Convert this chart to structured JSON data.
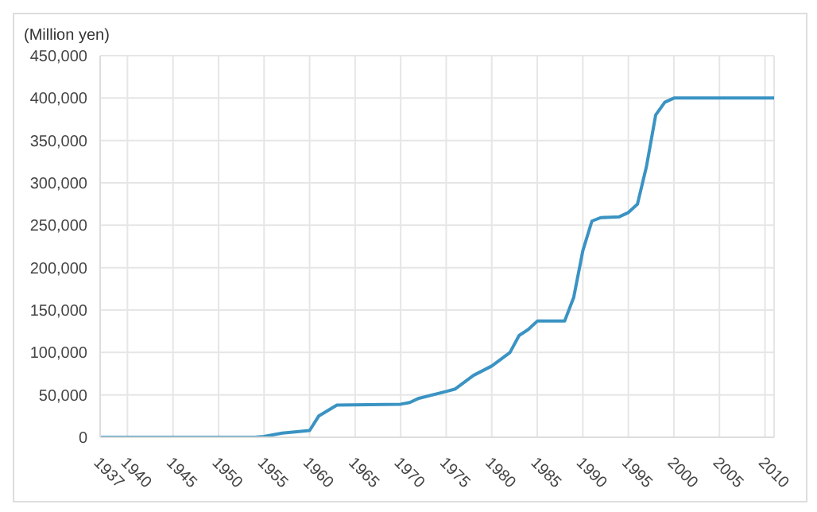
{
  "chart_data": {
    "type": "line",
    "ylabel": "(Million yen)",
    "x": [
      1937,
      1954,
      1955,
      1957,
      1960,
      1961,
      1963,
      1970,
      1971,
      1972,
      1975,
      1976,
      1978,
      1980,
      1982,
      1983,
      1984,
      1985,
      1988,
      1989,
      1990,
      1991,
      1992,
      1994,
      1995,
      1996,
      1997,
      1998,
      1999,
      2000,
      2011
    ],
    "series": [
      {
        "color": "#3a93c3",
        "values": [
          0,
          0,
          1000,
          5000,
          8000,
          25000,
          38000,
          39000,
          41000,
          46000,
          54000,
          57000,
          73000,
          84000,
          100000,
          120000,
          127000,
          137000,
          137000,
          165000,
          220000,
          255000,
          259000,
          260000,
          265000,
          275000,
          320000,
          380000,
          395000,
          400000,
          400000
        ]
      }
    ],
    "xlim": [
      1937,
      2011
    ],
    "xticks": [
      1937,
      1940,
      1945,
      1950,
      1955,
      1960,
      1965,
      1970,
      1975,
      1980,
      1985,
      1990,
      1995,
      2000,
      2005,
      2010
    ],
    "ylim": [
      0,
      450000
    ],
    "yticks": [
      0,
      {
        "value": 50000,
        "label": "50,000"
      },
      {
        "value": 100000,
        "label": "100,000"
      },
      {
        "value": 150000,
        "label": "150,000"
      },
      {
        "value": 200000,
        "label": "200,000"
      },
      {
        "value": 250000,
        "label": "250,000"
      },
      {
        "value": 300000,
        "label": "300,000"
      },
      {
        "value": 350000,
        "label": "350,000"
      },
      {
        "value": 400000,
        "label": "400,000"
      },
      {
        "value": 450000,
        "label": "450,000"
      }
    ],
    "grid": true,
    "legend": false,
    "marker": "none",
    "line_style": "solid"
  }
}
